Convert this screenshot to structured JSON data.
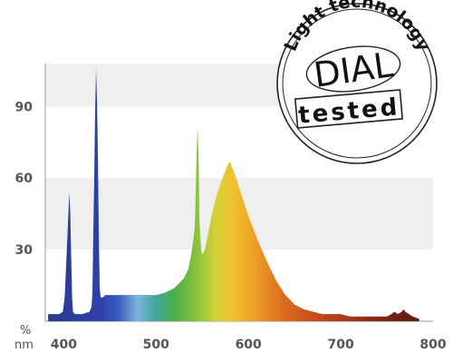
{
  "chart_data": {
    "type": "area",
    "title": "",
    "xlabel": "nm",
    "ylabel": "%",
    "xlim": [
      380,
      800
    ],
    "ylim": [
      0,
      108
    ],
    "x_ticks": [
      400,
      500,
      600,
      700,
      800
    ],
    "y_ticks": [
      30,
      60,
      90
    ],
    "grid": "alternating horizontal bands",
    "fill": "visible-spectrum gradient",
    "series": [
      {
        "x": [
          383,
          395,
          399,
          401,
          403,
          405,
          406,
          407,
          408,
          409,
          410,
          412,
          415,
          420,
          428,
          430,
          431,
          432,
          433,
          434,
          435,
          436,
          437,
          438,
          439,
          440,
          442,
          445,
          450,
          460,
          470,
          480,
          490,
          500,
          510,
          520,
          530,
          535,
          538,
          540,
          542,
          543,
          544,
          545,
          546,
          547,
          548,
          549,
          550,
          553,
          556,
          560,
          565,
          570,
          575,
          578,
          580,
          582,
          585,
          590,
          595,
          600,
          610,
          620,
          630,
          640,
          650,
          660,
          670,
          680,
          690,
          700,
          710,
          720,
          730,
          740,
          750,
          755,
          758,
          762,
          766,
          768,
          770,
          774,
          778,
          785
        ],
        "y": [
          3,
          3,
          4,
          10,
          27,
          45,
          54,
          46,
          28,
          10,
          4,
          3,
          3,
          3,
          4,
          6,
          12,
          38,
          60,
          88,
          106,
          92,
          68,
          35,
          14,
          10,
          10,
          11,
          11,
          11,
          11,
          11,
          11,
          11,
          12,
          14,
          18,
          22,
          28,
          33,
          40,
          55,
          72,
          81,
          68,
          42,
          35,
          30,
          28,
          30,
          36,
          44,
          52,
          58,
          63,
          66,
          67,
          65,
          62,
          56,
          50,
          44,
          34,
          25,
          17,
          11,
          7,
          5,
          4,
          3,
          3,
          3,
          2,
          2,
          2,
          2,
          2,
          3,
          4,
          3,
          4,
          5,
          4,
          3,
          2,
          1
        ]
      }
    ]
  },
  "badge": {
    "arc_text": "Light technology",
    "brand": "DIAL",
    "stamp": "tested"
  }
}
